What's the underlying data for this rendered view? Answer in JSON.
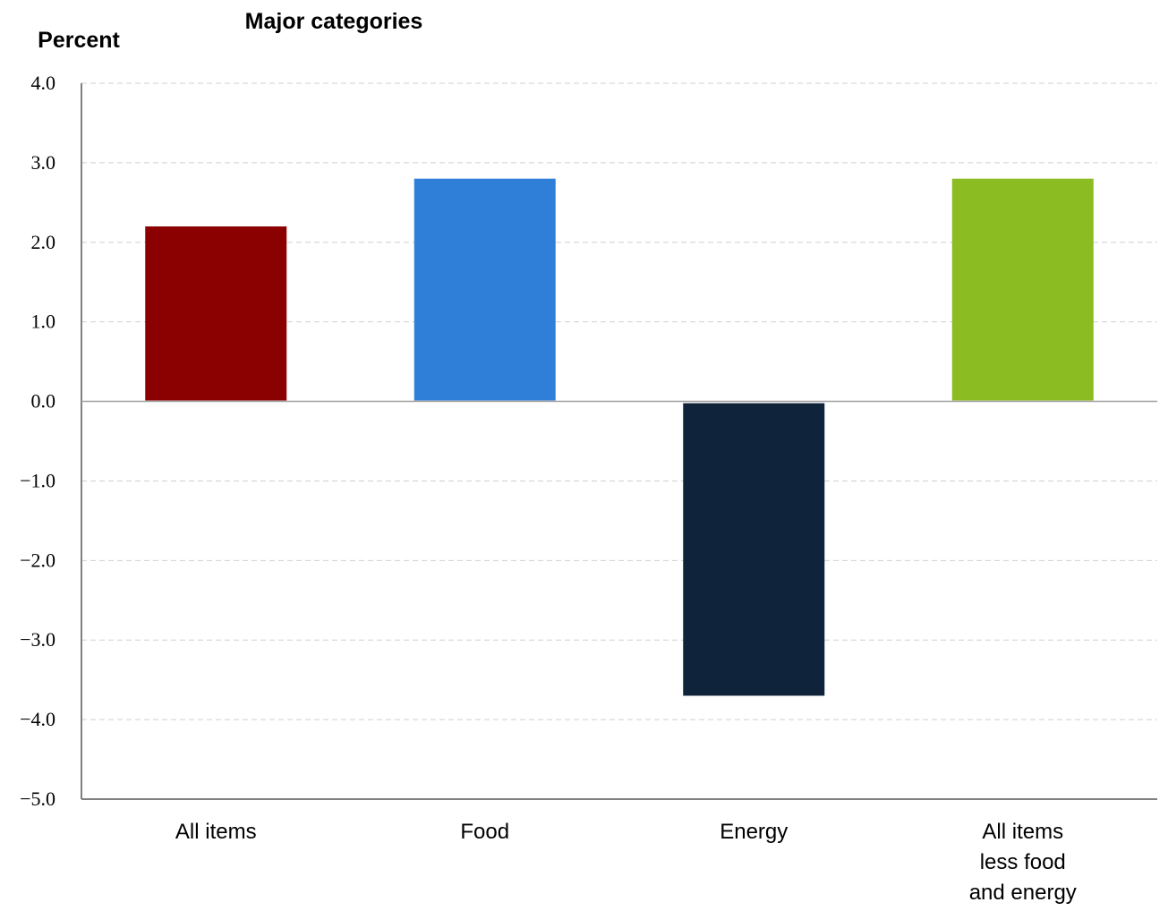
{
  "chart_data": {
    "type": "bar",
    "title": "Major categories",
    "ylabel": "Percent",
    "xlabel": "",
    "categories": [
      [
        "All items"
      ],
      [
        "Food"
      ],
      [
        "Energy"
      ],
      [
        "All items",
        "less food",
        "and energy"
      ]
    ],
    "values": [
      2.2,
      2.8,
      -3.7,
      2.8
    ],
    "colors": [
      "#8b0000",
      "#2f7ed8",
      "#0f243b",
      "#8bbc21"
    ],
    "ylim": [
      -5.0,
      4.0
    ],
    "yticks": [
      "4.0",
      "3.0",
      "2.0",
      "1.0",
      "0.0",
      "−1.0",
      "−2.0",
      "−3.0",
      "−4.0",
      "−5.0"
    ],
    "ytick_values": [
      4,
      3,
      2,
      1,
      0,
      -1,
      -2,
      -3,
      -4,
      -5
    ],
    "grid": true,
    "legend": "none"
  }
}
